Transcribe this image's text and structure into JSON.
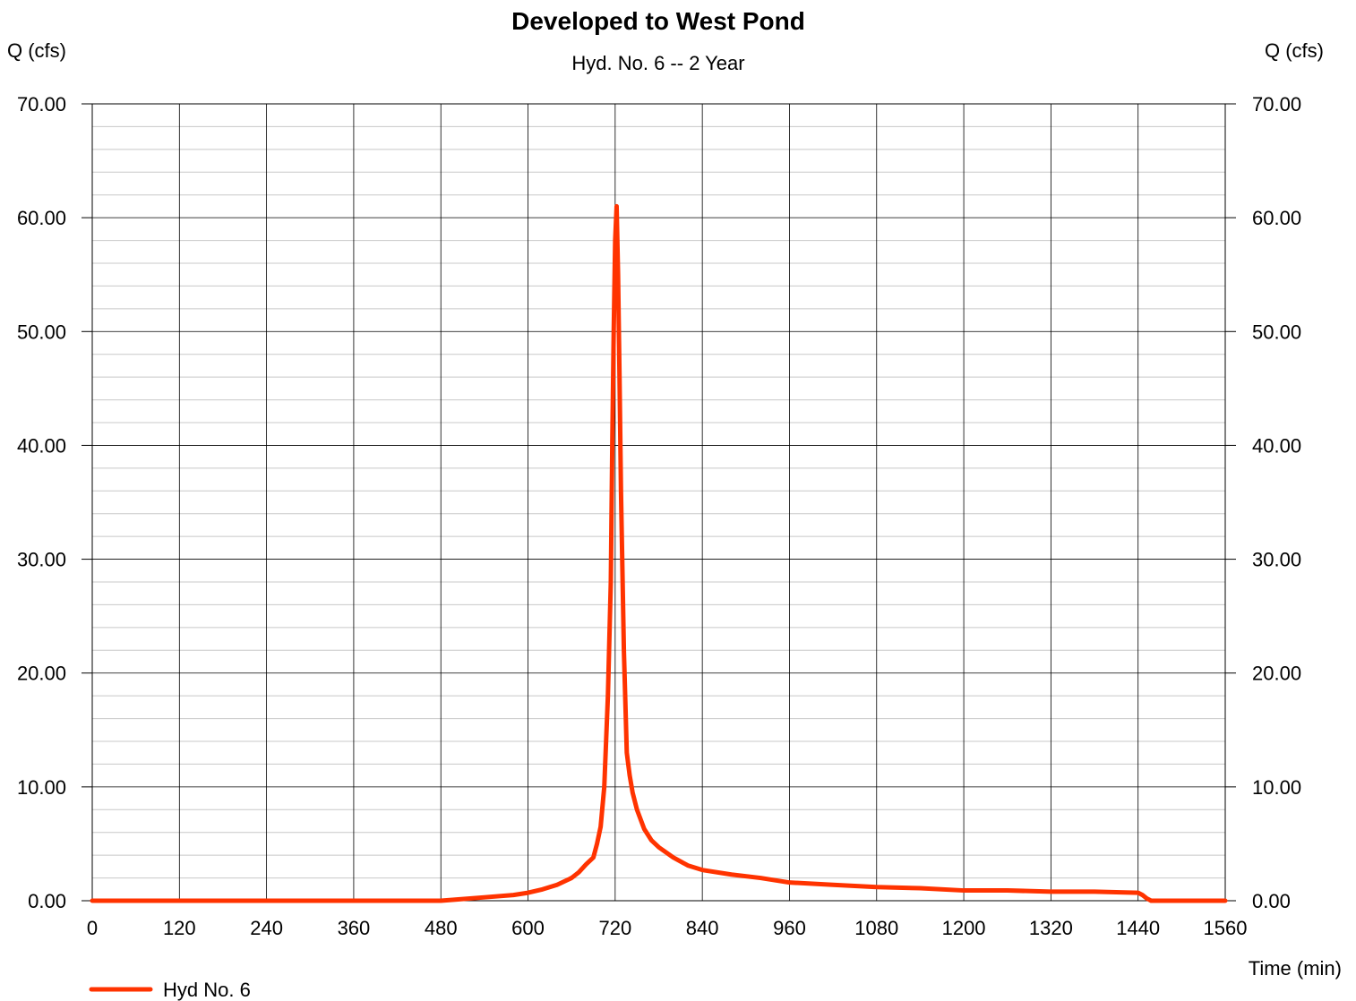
{
  "chart_data": {
    "type": "line",
    "title": "Developed to West Pond",
    "subtitle": "Hyd. No. 6 -- 2 Year",
    "ylabel_left": "Q (cfs)",
    "ylabel_right": "Q (cfs)",
    "xlabel": "Time (min)",
    "xlim": [
      0,
      1560
    ],
    "ylim": [
      0,
      70
    ],
    "x_ticks": [
      0,
      120,
      240,
      360,
      480,
      600,
      720,
      840,
      960,
      1080,
      1200,
      1320,
      1440,
      1560
    ],
    "x_tick_labels": [
      "0",
      "120",
      "240",
      "360",
      "480",
      "600",
      "720",
      "840",
      "960",
      "1080",
      "1200",
      "1320",
      "1440",
      "1560"
    ],
    "y_ticks": [
      0,
      10,
      20,
      30,
      40,
      50,
      60,
      70
    ],
    "y_tick_labels": [
      "0.00",
      "10.00",
      "20.00",
      "30.00",
      "40.00",
      "50.00",
      "60.00",
      "70.00"
    ],
    "y_minor_step": 2,
    "grid": true,
    "legend_position": "bottom-left",
    "series": [
      {
        "name": "Hyd No. 6",
        "color": "#ff3300",
        "x": [
          0,
          480,
          500,
          540,
          580,
          600,
          620,
          640,
          660,
          670,
          680,
          690,
          695,
          700,
          705,
          710,
          714,
          716,
          718,
          720,
          722,
          724,
          726,
          728,
          732,
          736,
          740,
          744,
          750,
          760,
          770,
          780,
          800,
          820,
          840,
          880,
          920,
          960,
          1020,
          1080,
          1140,
          1200,
          1260,
          1320,
          1380,
          1440,
          1446,
          1452,
          1458,
          1560
        ],
        "y": [
          0,
          0,
          0.1,
          0.3,
          0.5,
          0.7,
          1.0,
          1.4,
          2.0,
          2.5,
          3.2,
          3.8,
          5.0,
          6.5,
          10.0,
          18.0,
          28.0,
          40.0,
          50.0,
          58.0,
          61.0,
          55.0,
          46.0,
          36.0,
          22.0,
          13.0,
          11.0,
          9.5,
          8.0,
          6.3,
          5.3,
          4.7,
          3.8,
          3.1,
          2.7,
          2.3,
          2.0,
          1.6,
          1.4,
          1.2,
          1.1,
          0.9,
          0.9,
          0.8,
          0.8,
          0.7,
          0.5,
          0.2,
          0,
          0
        ]
      }
    ]
  }
}
